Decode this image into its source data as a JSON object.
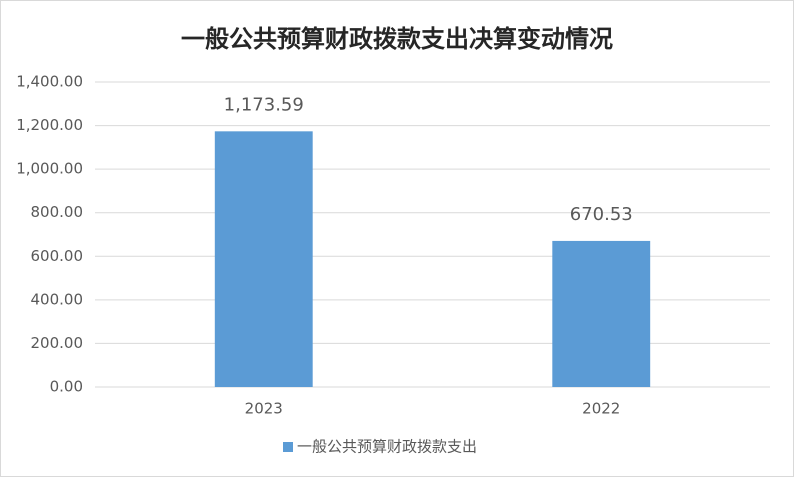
{
  "chart_data": {
    "type": "bar",
    "title": "一般公共预算财政拨款支出决算变动情况",
    "categories": [
      "2023",
      "2022"
    ],
    "series": [
      {
        "name": "一般公共预算财政拨款支出",
        "color": "#5b9bd5",
        "values": [
          1173.59,
          670.53
        ],
        "value_labels": [
          "1,173.59",
          "670.53"
        ]
      }
    ],
    "ylim": [
      0,
      1400
    ],
    "yticks": [
      {
        "value": 0,
        "label": "0.00"
      },
      {
        "value": 200,
        "label": "200.00"
      },
      {
        "value": 400,
        "label": "400.00"
      },
      {
        "value": 600,
        "label": "600.00"
      },
      {
        "value": 800,
        "label": "800.00"
      },
      {
        "value": 1000,
        "label": "1,000.00"
      },
      {
        "value": 1200,
        "label": "1,200.00"
      },
      {
        "value": 1400,
        "label": "1,400.00"
      }
    ],
    "grid": true,
    "legend": "bottom"
  }
}
